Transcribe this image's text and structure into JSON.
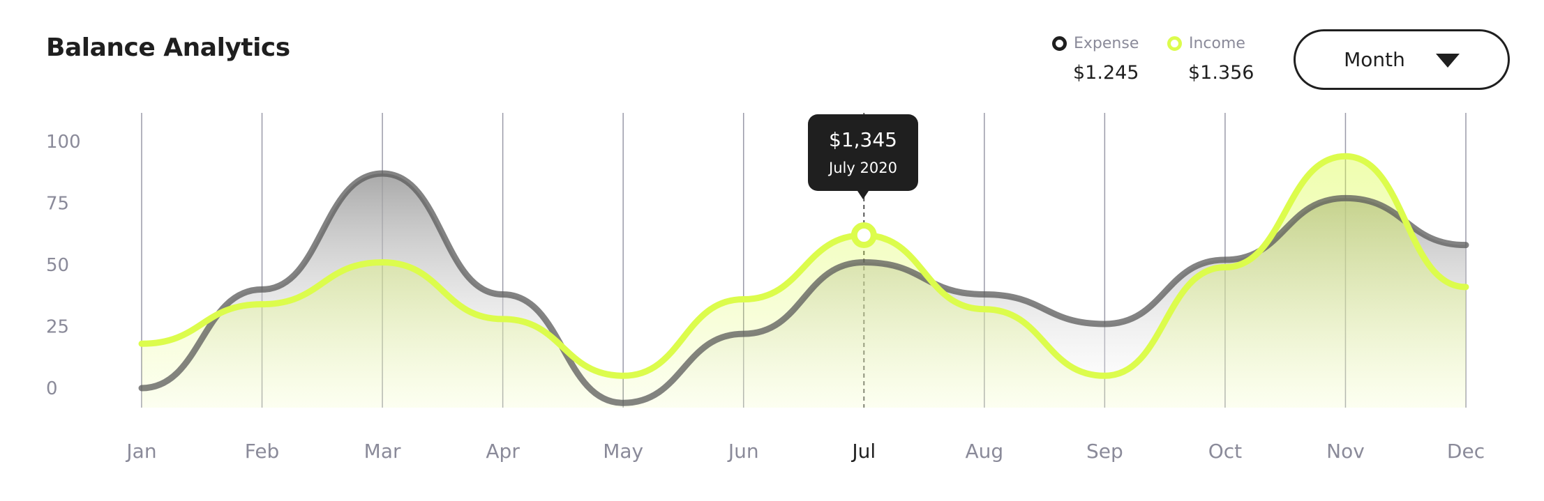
{
  "header": {
    "title": "Balance Analytics"
  },
  "legend": {
    "expense": {
      "label": "Expense",
      "value": "$1.245",
      "color": "#1f1f1f"
    },
    "income": {
      "label": "Income",
      "value": "$1.356",
      "color": "#dcfc4c"
    }
  },
  "controls": {
    "period_label": "Month"
  },
  "tooltip": {
    "value": "$1,345",
    "date": "July 2020"
  },
  "chart_data": {
    "type": "area",
    "categories": [
      "Jan",
      "Feb",
      "Mar",
      "Apr",
      "May",
      "Jun",
      "Jul",
      "Aug",
      "Sep",
      "Oct",
      "Nov",
      "Dec"
    ],
    "active_category": "Jul",
    "y_ticks": [
      "100",
      "75",
      "50",
      "25",
      "0"
    ],
    "ylim": [
      0,
      100
    ],
    "grid": "vertical",
    "series": [
      {
        "name": "Expense",
        "color": "#7a7a7a",
        "values": [
          0,
          40,
          87,
          38,
          -6,
          22,
          51,
          38,
          26,
          52,
          77,
          58
        ]
      },
      {
        "name": "Income",
        "color": "#dcfc4c",
        "values": [
          18,
          34,
          51,
          28,
          5,
          36,
          62,
          32,
          5,
          49,
          94,
          41
        ]
      }
    ]
  }
}
